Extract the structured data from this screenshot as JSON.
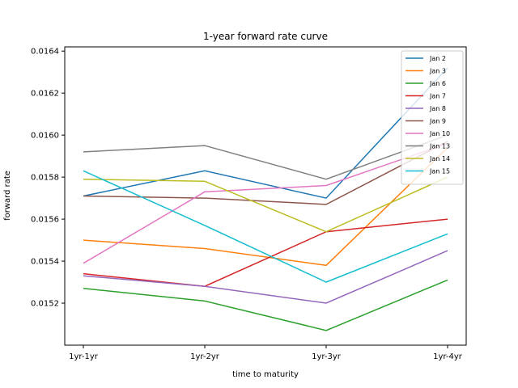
{
  "chart_data": {
    "type": "line",
    "title": "1-year forward rate curve",
    "xlabel": "time to maturity",
    "ylabel": "forward rate",
    "categories": [
      "1yr-1yr",
      "1yr-2yr",
      "1yr-3yr",
      "1yr-4yr"
    ],
    "ylim": [
      0.015,
      0.01642
    ],
    "yticks": [
      "0.0152",
      "0.0154",
      "0.0156",
      "0.0158",
      "0.0160",
      "0.0162",
      "0.0164"
    ],
    "legend_position": "top-right",
    "grid": false,
    "series": [
      {
        "name": "Jan 2",
        "color": "#1f77b4",
        "values": [
          0.01571,
          0.01583,
          0.0157,
          0.01632
        ]
      },
      {
        "name": "Jan 3",
        "color": "#ff7f0e",
        "values": [
          0.0155,
          0.01546,
          0.01538,
          0.01594
        ]
      },
      {
        "name": "Jan 6",
        "color": "#2ca02c",
        "values": [
          0.01527,
          0.01521,
          0.01507,
          0.01531
        ]
      },
      {
        "name": "Jan 7",
        "color": "#d62728",
        "values": [
          0.01534,
          0.01528,
          0.01554,
          0.0156
        ]
      },
      {
        "name": "Jan 8",
        "color": "#9467bd",
        "values": [
          0.01533,
          0.01528,
          0.0152,
          0.01545
        ]
      },
      {
        "name": "Jan 9",
        "color": "#8c564b",
        "values": [
          0.01571,
          0.0157,
          0.01567,
          0.01597
        ]
      },
      {
        "name": "Jan 10",
        "color": "#e377c2",
        "values": [
          0.01539,
          0.01573,
          0.01576,
          0.01596
        ]
      },
      {
        "name": "Jan 13",
        "color": "#7f7f7f",
        "values": [
          0.01592,
          0.01595,
          0.01579,
          0.016
        ]
      },
      {
        "name": "Jan 14",
        "color": "#bcbd22",
        "values": [
          0.01579,
          0.01578,
          0.01554,
          0.0158
        ]
      },
      {
        "name": "Jan 15",
        "color": "#17becf",
        "values": [
          0.01583,
          0.01557,
          0.0153,
          0.01553
        ]
      }
    ]
  }
}
